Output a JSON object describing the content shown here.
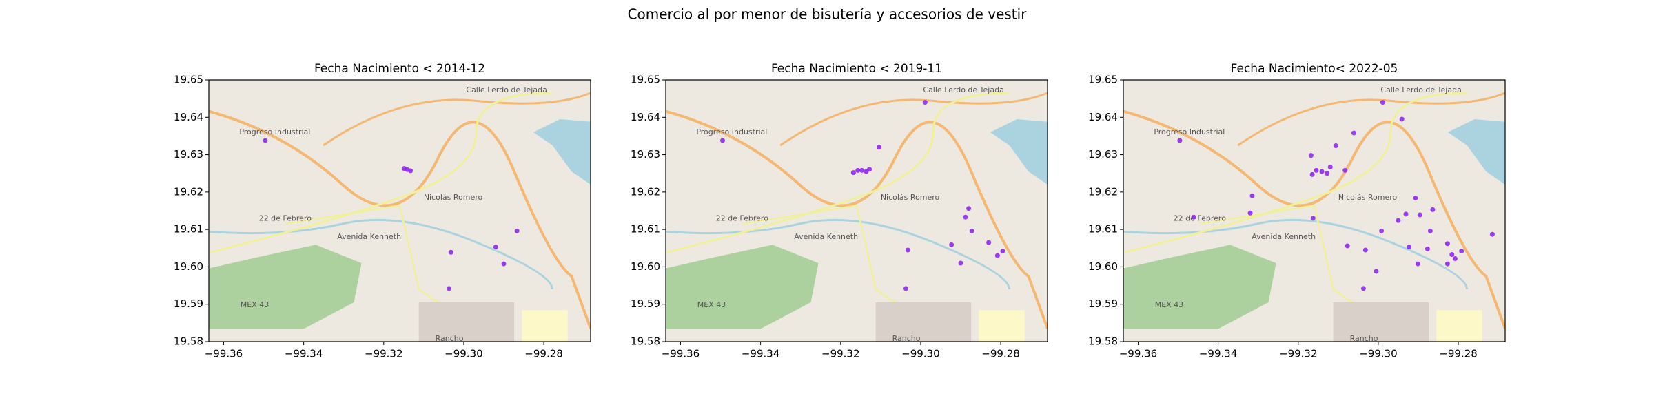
{
  "title": "Comercio al por menor de bisutería y accesorios de vestir",
  "map_labels": [
    "Progreso Industrial",
    "Nicolás Romero",
    "22 de Febrero",
    "Avenida Kenneth",
    "MEX 43",
    "Rancho",
    "Calle Lerdo de Tejada"
  ],
  "chart_data": [
    {
      "type": "scatter",
      "title": "Fecha Nacimiento < 2014-12",
      "color": "#8b1cf0",
      "x": [
        -99.3496,
        -99.3141,
        -99.3133,
        -99.3149,
        -99.292,
        -99.29,
        -99.2867,
        -99.3032,
        -99.3037
      ],
      "y": [
        19.6338,
        19.626,
        19.6257,
        19.6263,
        19.6053,
        19.6008,
        19.6096,
        19.6039,
        19.5942
      ],
      "xlim": [
        -99.3637,
        -99.2683
      ],
      "ylim": [
        19.58,
        19.65
      ],
      "xticks": [
        {
          "value": -99.36,
          "label": "−99.36"
        },
        {
          "value": -99.34,
          "label": "−99.34"
        },
        {
          "value": -99.32,
          "label": "−99.32"
        },
        {
          "value": -99.3,
          "label": "−99.30"
        },
        {
          "value": -99.28,
          "label": "−99.28"
        }
      ],
      "yticks": [
        19.58,
        19.59,
        {
          "value": 19.6,
          "label": "19.60"
        },
        19.61,
        19.62,
        19.63,
        19.64,
        19.65
      ]
    },
    {
      "type": "scatter",
      "title": "Fecha Nacimiento < 2019-11",
      "color": "#8b1cf0",
      "x": [
        -99.3495,
        -99.2989,
        -99.3104,
        -99.3157,
        -99.3147,
        -99.3136,
        -99.3168,
        -99.3128,
        -99.288,
        -99.2888,
        -99.2872,
        -99.2923,
        -99.283,
        -99.29,
        -99.2808,
        -99.2795,
        -99.3032,
        -99.3037
      ],
      "y": [
        19.6338,
        19.644,
        19.632,
        19.6258,
        19.6258,
        19.6255,
        19.6252,
        19.6261,
        19.6156,
        19.6133,
        19.6096,
        19.6059,
        19.6065,
        19.601,
        19.603,
        19.6042,
        19.6045,
        19.5942
      ],
      "xlim": [
        -99.3637,
        -99.2683
      ],
      "ylim": [
        19.58,
        19.65
      ],
      "xticks": [
        {
          "value": -99.36,
          "label": "−99.36"
        },
        {
          "value": -99.34,
          "label": "−99.34"
        },
        {
          "value": -99.32,
          "label": "−99.32"
        },
        {
          "value": -99.3,
          "label": "−99.30"
        },
        {
          "value": -99.28,
          "label": "−99.28"
        }
      ],
      "yticks": [
        19.58,
        19.59,
        {
          "value": 19.6,
          "label": "19.60"
        },
        19.61,
        19.62,
        19.63,
        19.64,
        19.65
      ]
    },
    {
      "type": "scatter",
      "title": "Fecha Nacimiento< 2022-05",
      "color": "#8b1cf0",
      "x": [
        -99.3496,
        -99.2989,
        -99.2941,
        -99.3061,
        -99.3106,
        -99.3168,
        -99.312,
        -99.3155,
        -99.3141,
        -99.3128,
        -99.3165,
        -99.3083,
        -99.3315,
        -99.332,
        -99.3461,
        -99.3163,
        -99.2907,
        -99.2931,
        -99.295,
        -99.2896,
        -99.287,
        -99.2992,
        -99.2923,
        -99.2827,
        -99.2792,
        -99.2816,
        -99.2808,
        -99.2827,
        -99.2901,
        -99.2877,
        -99.2715,
        -99.3077,
        -99.3032,
        -99.3005,
        -99.3037,
        -99.2864
      ],
      "y": [
        19.6338,
        19.644,
        19.6395,
        19.6358,
        19.6324,
        19.6298,
        19.6267,
        19.6258,
        19.6255,
        19.625,
        19.6247,
        19.6258,
        19.619,
        19.6144,
        19.6133,
        19.613,
        19.6184,
        19.6141,
        19.6124,
        19.6139,
        19.6096,
        19.6096,
        19.6053,
        19.6062,
        19.6042,
        19.6033,
        19.6022,
        19.6008,
        19.6008,
        19.6048,
        19.6087,
        19.6056,
        19.6045,
        19.5988,
        19.5942,
        19.6153
      ],
      "xlim": [
        -99.3637,
        -99.2683
      ],
      "ylim": [
        19.58,
        19.65
      ],
      "xticks": [
        {
          "value": -99.36,
          "label": "−99.36"
        },
        {
          "value": -99.34,
          "label": "−99.34"
        },
        {
          "value": -99.32,
          "label": "−99.32"
        },
        {
          "value": -99.3,
          "label": "−99.30"
        },
        {
          "value": -99.28,
          "label": "−99.28"
        }
      ],
      "yticks": [
        19.58,
        19.59,
        {
          "value": 19.6,
          "label": "19.60"
        },
        19.61,
        19.62,
        19.63,
        19.64,
        19.65
      ]
    }
  ]
}
